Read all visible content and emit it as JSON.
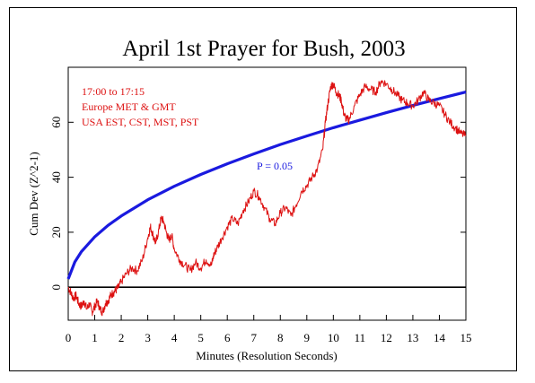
{
  "chart_data": {
    "type": "line",
    "title": "April 1st Prayer for Bush, 2003",
    "xlabel": "Minutes (Resolution Seconds)",
    "ylabel": "Cum Dev (Z^2-1)",
    "xlim": [
      0,
      15
    ],
    "ylim": [
      -12,
      80
    ],
    "x_ticks": [
      0,
      1,
      2,
      3,
      4,
      5,
      6,
      7,
      8,
      9,
      10,
      11,
      12,
      13,
      14,
      15
    ],
    "y_ticks": [
      0,
      20,
      40,
      60
    ],
    "annotations": [
      "17:00 to 17:15",
      "Europe MET & GMT",
      "USA EST, CST, MST, PST"
    ],
    "envelope": {
      "label": "P = 0.05",
      "color": "#1a1adf",
      "x": [
        0,
        0.25,
        0.5,
        1,
        1.5,
        2,
        3,
        4,
        5,
        6,
        7,
        8,
        9,
        10,
        11,
        12,
        13,
        14,
        15
      ],
      "y": [
        3,
        9.2,
        13.0,
        18.3,
        22.5,
        25.9,
        31.8,
        36.7,
        41.0,
        44.9,
        48.5,
        51.9,
        55.0,
        58.0,
        60.8,
        63.5,
        66.1,
        68.6,
        71.0
      ]
    },
    "cumdev": {
      "color": "#dd1111",
      "x": [
        0,
        0.1,
        0.2,
        0.3,
        0.4,
        0.5,
        0.6,
        0.7,
        0.8,
        0.9,
        1.0,
        1.1,
        1.2,
        1.3,
        1.4,
        1.5,
        1.6,
        1.7,
        1.8,
        1.9,
        2.0,
        2.2,
        2.4,
        2.6,
        2.8,
        3.0,
        3.1,
        3.2,
        3.3,
        3.4,
        3.5,
        3.6,
        3.7,
        3.8,
        3.9,
        4.0,
        4.2,
        4.4,
        4.6,
        4.8,
        5.0,
        5.2,
        5.4,
        5.5,
        5.6,
        5.8,
        6.0,
        6.2,
        6.4,
        6.6,
        6.8,
        7.0,
        7.2,
        7.4,
        7.6,
        7.8,
        8.0,
        8.2,
        8.4,
        8.6,
        8.8,
        9.0,
        9.2,
        9.4,
        9.6,
        9.7,
        9.8,
        9.9,
        10.0,
        10.1,
        10.2,
        10.3,
        10.4,
        10.5,
        10.6,
        10.8,
        11.0,
        11.2,
        11.4,
        11.6,
        11.8,
        12.0,
        12.2,
        12.4,
        12.6,
        12.8,
        13.0,
        13.2,
        13.4,
        13.6,
        13.8,
        14.0,
        14.2,
        14.4,
        14.6,
        14.8,
        15.0
      ],
      "y": [
        0,
        -2,
        -4,
        -3,
        -6,
        -7,
        -5,
        -8,
        -6,
        -9,
        -7,
        -5,
        -8,
        -9,
        -6,
        -5,
        -3,
        -2,
        -1,
        0,
        2,
        5,
        7,
        6,
        10,
        18,
        22,
        19,
        16,
        20,
        25,
        24,
        20,
        17,
        19,
        14,
        10,
        8,
        6,
        9,
        7,
        10,
        8,
        12,
        14,
        18,
        22,
        25,
        23,
        28,
        31,
        35,
        33,
        29,
        25,
        23,
        27,
        29,
        26,
        30,
        35,
        37,
        40,
        43,
        50,
        60,
        67,
        73,
        74,
        71,
        70,
        68,
        63,
        61,
        61,
        66,
        70,
        73,
        72,
        71,
        75,
        74,
        72,
        70,
        68,
        67,
        66,
        68,
        71,
        68,
        67,
        66,
        63,
        60,
        58,
        56,
        55
      ]
    },
    "zero_line": true,
    "grid": false
  }
}
